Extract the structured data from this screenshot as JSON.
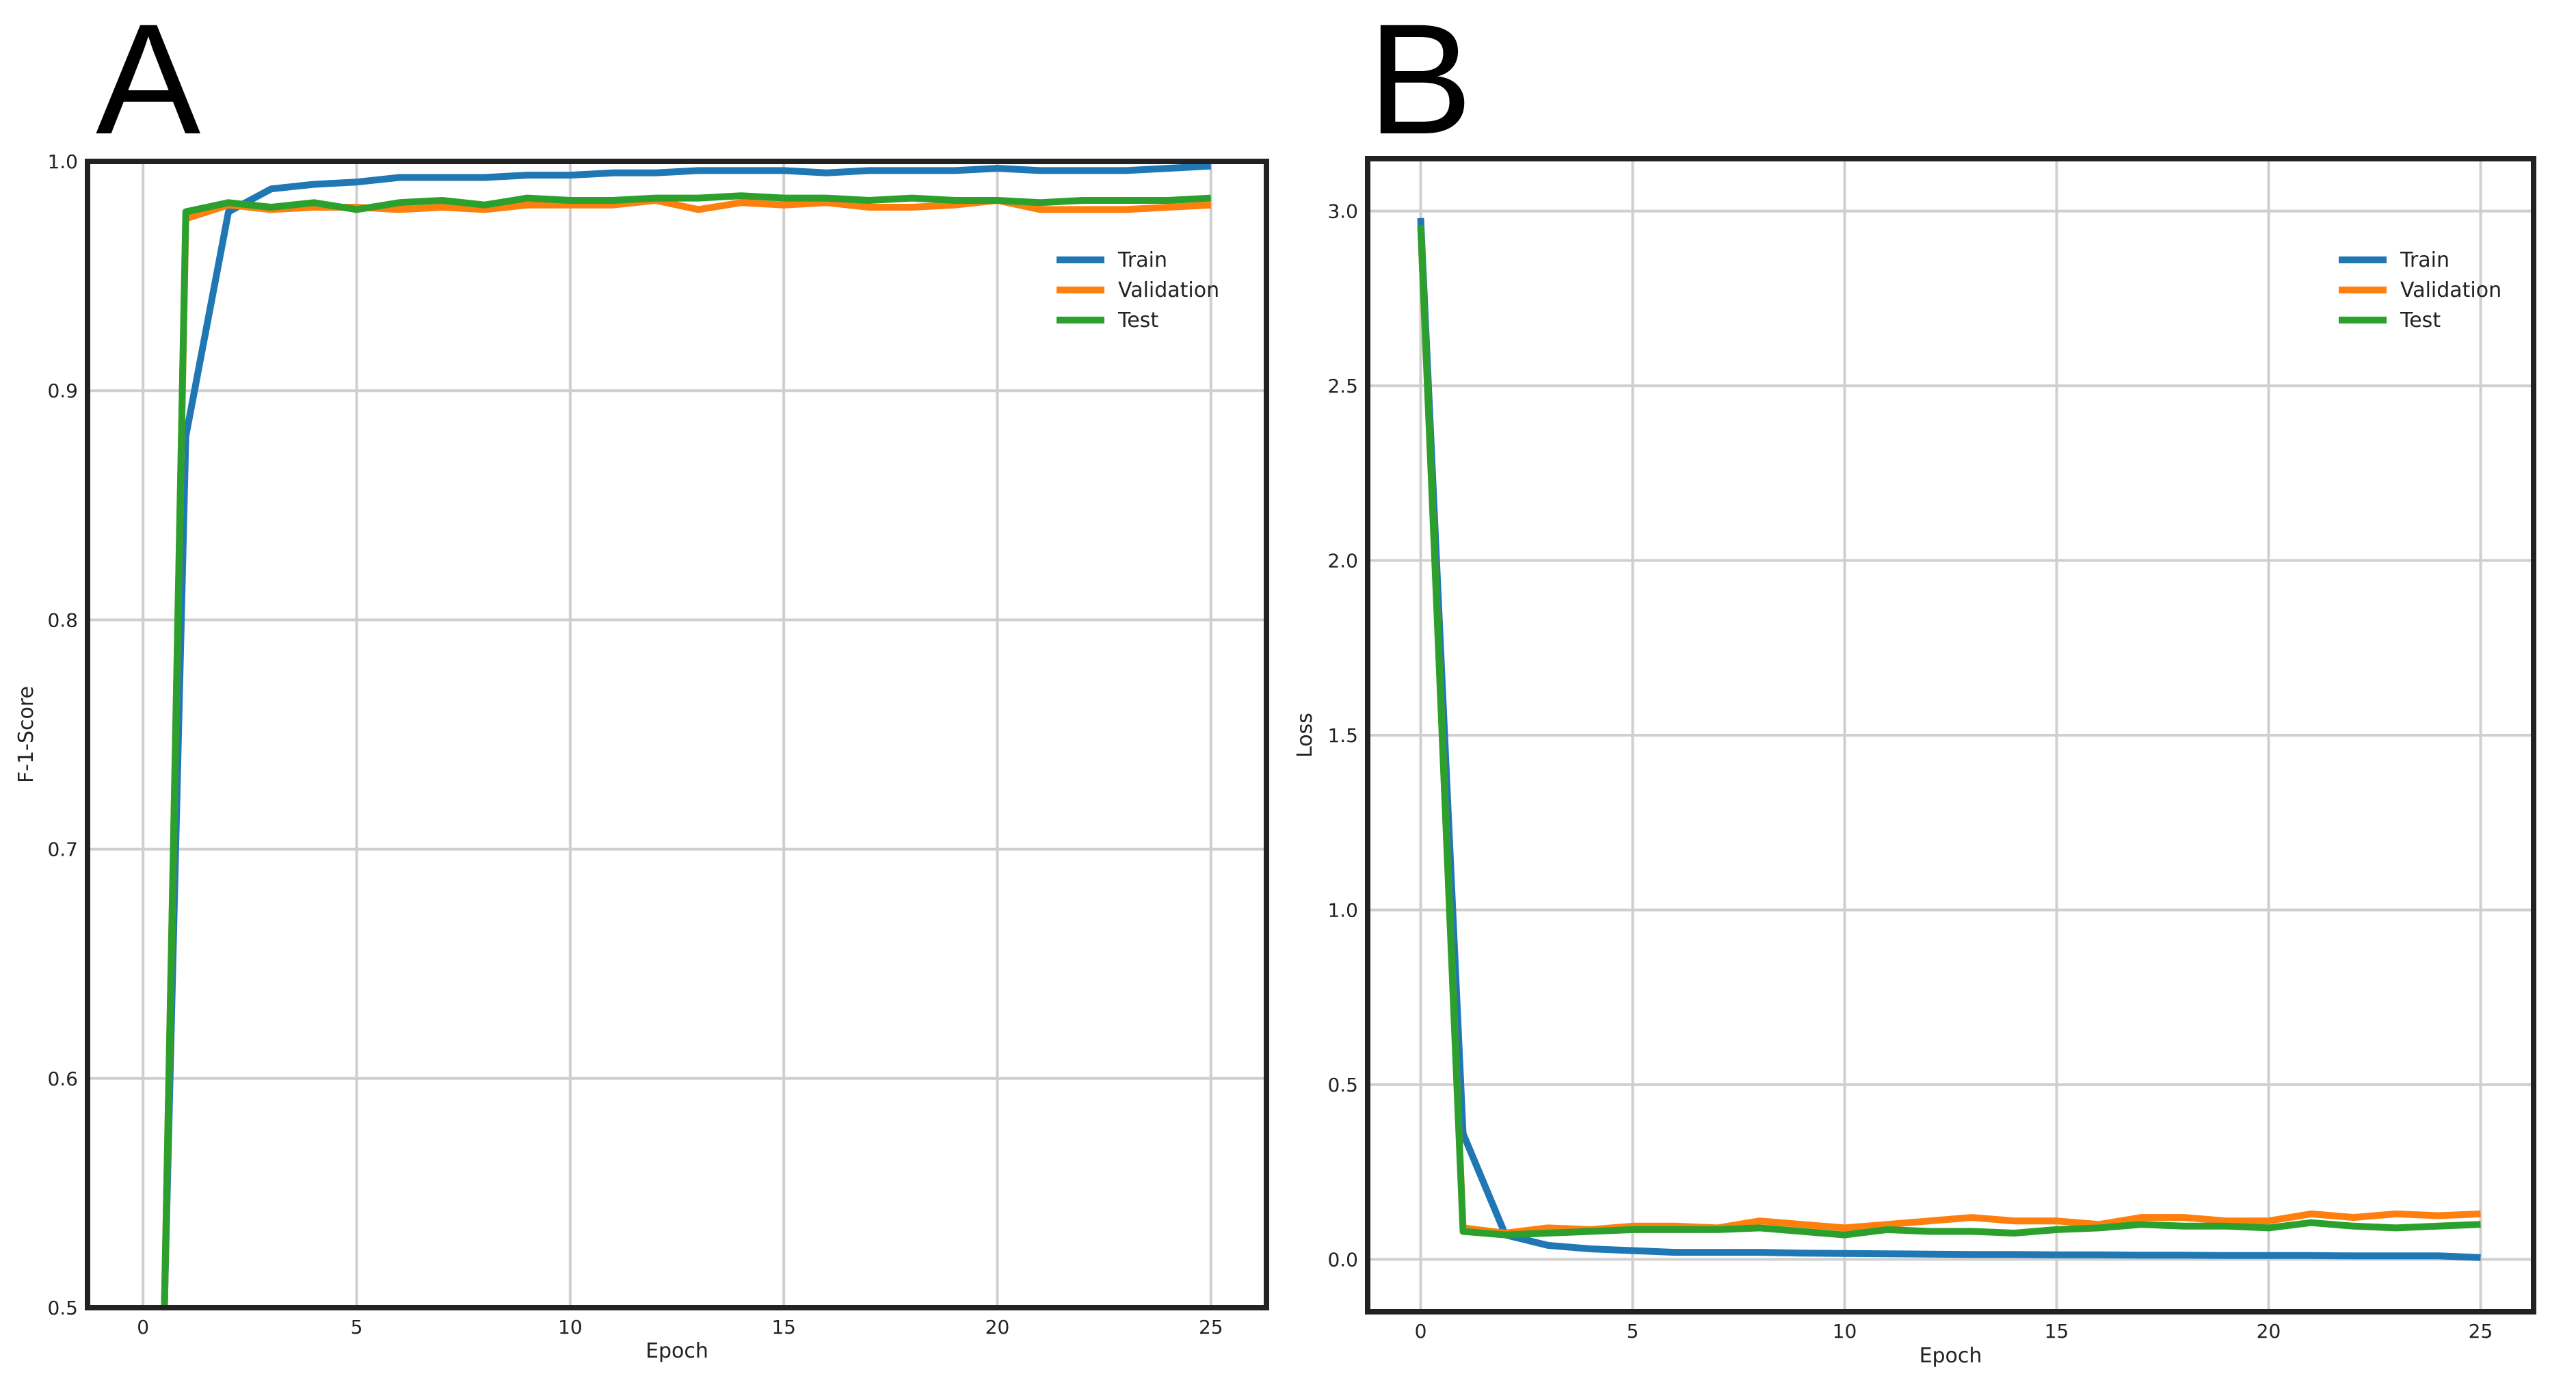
{
  "chart_data": [
    {
      "panel": "A",
      "type": "line",
      "title": "",
      "xlabel": "Epoch",
      "ylabel": "F-1-Score",
      "xlim": [
        -1.3,
        26.3
      ],
      "ylim": [
        0.5,
        1.0
      ],
      "xticks": [
        0,
        5,
        10,
        15,
        20,
        25
      ],
      "yticks": [
        0.5,
        0.6,
        0.7,
        0.8,
        0.9,
        1.0
      ],
      "xtick_labels": [
        "0",
        "5",
        "10",
        "15",
        "20",
        "25"
      ],
      "ytick_labels": [
        "0.5",
        "0.6",
        "0.7",
        "0.8",
        "0.9",
        "1.0"
      ],
      "grid": true,
      "legend_position": "upper right",
      "series": [
        {
          "name": "Train",
          "color": "#1f77b4",
          "x": [
            0.5,
            1,
            2,
            3,
            4,
            5,
            6,
            7,
            8,
            9,
            10,
            11,
            12,
            13,
            14,
            15,
            16,
            17,
            18,
            19,
            20,
            21,
            22,
            23,
            24,
            25
          ],
          "y": [
            0.5,
            0.88,
            0.978,
            0.988,
            0.99,
            0.991,
            0.993,
            0.993,
            0.993,
            0.994,
            0.994,
            0.995,
            0.995,
            0.996,
            0.996,
            0.996,
            0.995,
            0.996,
            0.996,
            0.996,
            0.997,
            0.996,
            0.996,
            0.996,
            0.997,
            0.998
          ]
        },
        {
          "name": "Validation",
          "color": "#ff7f0e",
          "x": [
            0.5,
            1,
            2,
            3,
            4,
            5,
            6,
            7,
            8,
            9,
            10,
            11,
            12,
            13,
            14,
            15,
            16,
            17,
            18,
            19,
            20,
            21,
            22,
            23,
            24,
            25
          ],
          "y": [
            0.5,
            0.975,
            0.981,
            0.979,
            0.98,
            0.98,
            0.979,
            0.98,
            0.979,
            0.981,
            0.981,
            0.981,
            0.983,
            0.979,
            0.982,
            0.981,
            0.982,
            0.98,
            0.98,
            0.981,
            0.983,
            0.979,
            0.979,
            0.979,
            0.98,
            0.981
          ]
        },
        {
          "name": "Test",
          "color": "#2ca02c",
          "x": [
            0.5,
            1,
            2,
            3,
            4,
            5,
            6,
            7,
            8,
            9,
            10,
            11,
            12,
            13,
            14,
            15,
            16,
            17,
            18,
            19,
            20,
            21,
            22,
            23,
            24,
            25
          ],
          "y": [
            0.5,
            0.978,
            0.982,
            0.98,
            0.982,
            0.979,
            0.982,
            0.983,
            0.981,
            0.984,
            0.983,
            0.983,
            0.984,
            0.984,
            0.985,
            0.984,
            0.984,
            0.983,
            0.984,
            0.983,
            0.983,
            0.982,
            0.983,
            0.983,
            0.983,
            0.984
          ]
        }
      ]
    },
    {
      "panel": "B",
      "type": "line",
      "title": "",
      "xlabel": "Epoch",
      "ylabel": "Loss",
      "xlim": [
        -1.25,
        26.25
      ],
      "ylim": [
        -0.15,
        3.15
      ],
      "xticks": [
        0,
        5,
        10,
        15,
        20,
        25
      ],
      "yticks": [
        0.0,
        0.5,
        1.0,
        1.5,
        2.0,
        2.5,
        3.0
      ],
      "xtick_labels": [
        "0",
        "5",
        "10",
        "15",
        "20",
        "25"
      ],
      "ytick_labels": [
        "0.0",
        "0.5",
        "1.0",
        "1.5",
        "2.0",
        "2.5",
        "3.0"
      ],
      "grid": true,
      "legend_position": "upper right",
      "series": [
        {
          "name": "Train",
          "color": "#1f77b4",
          "x": [
            0,
            1,
            2,
            3,
            4,
            5,
            6,
            7,
            8,
            9,
            10,
            11,
            12,
            13,
            14,
            15,
            16,
            17,
            18,
            19,
            20,
            21,
            22,
            23,
            24,
            25
          ],
          "y": [
            2.98,
            0.36,
            0.07,
            0.04,
            0.03,
            0.025,
            0.02,
            0.02,
            0.02,
            0.018,
            0.017,
            0.016,
            0.015,
            0.014,
            0.014,
            0.013,
            0.013,
            0.012,
            0.012,
            0.011,
            0.011,
            0.011,
            0.01,
            0.01,
            0.01,
            0.005
          ]
        },
        {
          "name": "Validation",
          "color": "#ff7f0e",
          "x": [
            0,
            1,
            2,
            3,
            4,
            5,
            6,
            7,
            8,
            9,
            10,
            11,
            12,
            13,
            14,
            15,
            16,
            17,
            18,
            19,
            20,
            21,
            22,
            23,
            24,
            25
          ],
          "y": [
            2.96,
            0.09,
            0.075,
            0.09,
            0.085,
            0.095,
            0.095,
            0.09,
            0.11,
            0.1,
            0.09,
            0.1,
            0.11,
            0.12,
            0.11,
            0.11,
            0.1,
            0.12,
            0.12,
            0.11,
            0.11,
            0.13,
            0.12,
            0.13,
            0.125,
            0.13
          ]
        },
        {
          "name": "Test",
          "color": "#2ca02c",
          "x": [
            0,
            1,
            2,
            3,
            4,
            5,
            6,
            7,
            8,
            9,
            10,
            11,
            12,
            13,
            14,
            15,
            16,
            17,
            18,
            19,
            20,
            21,
            22,
            23,
            24,
            25
          ],
          "y": [
            2.96,
            0.08,
            0.07,
            0.075,
            0.08,
            0.085,
            0.085,
            0.085,
            0.09,
            0.08,
            0.07,
            0.085,
            0.08,
            0.08,
            0.075,
            0.085,
            0.09,
            0.1,
            0.095,
            0.095,
            0.09,
            0.105,
            0.095,
            0.09,
            0.095,
            0.1
          ]
        }
      ]
    }
  ]
}
